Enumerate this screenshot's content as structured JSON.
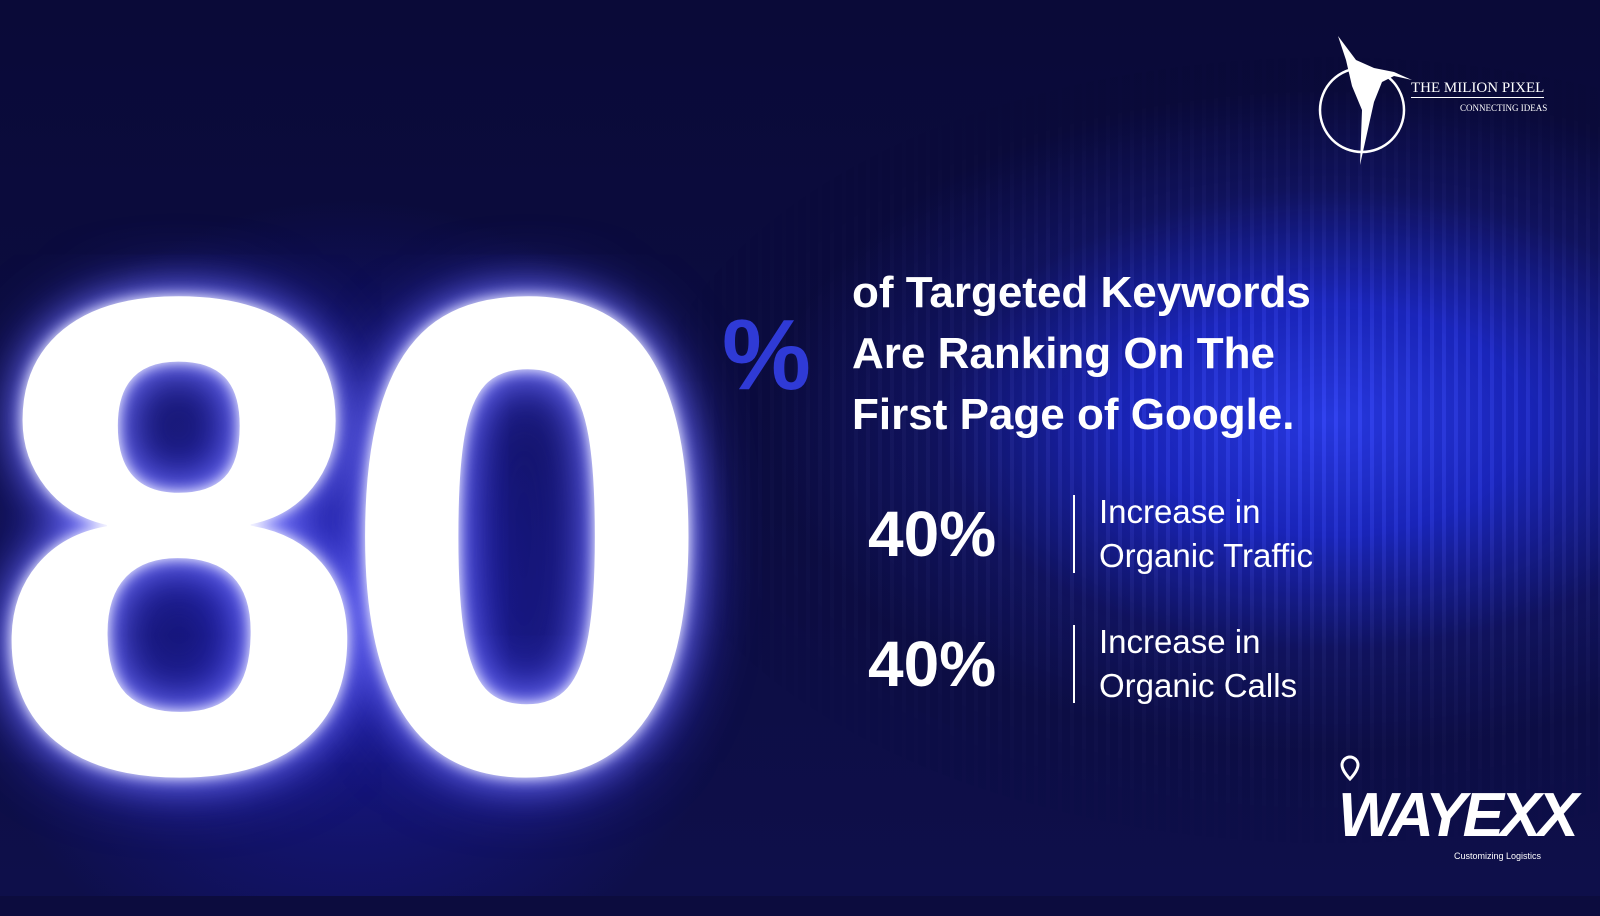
{
  "hero": {
    "big_number": "80",
    "big_suffix": "%"
  },
  "headline": {
    "lines": [
      "of Targeted Keywords",
      "Are Ranking On The",
      "First Page of Google."
    ]
  },
  "stats": [
    {
      "value": "40%",
      "label_line1": "Increase in",
      "label_line2": "Organic Traffic"
    },
    {
      "value": "40%",
      "label_line1": "Increase in",
      "label_line2": "Organic Calls"
    }
  ],
  "brand_logo": {
    "name": "THE MILION PIXEL",
    "tagline": "CONNECTING IDEAS",
    "icon": "hummingbird-icon"
  },
  "client_logo": {
    "name": "WAYEXX",
    "tagline": "Customizing Logistics",
    "icon": "location-pin-icon"
  },
  "colors": {
    "background": "#0c0c3e",
    "accent": "#2a3cf0",
    "percent_sign": "#2f3ad6",
    "text": "#ffffff"
  }
}
